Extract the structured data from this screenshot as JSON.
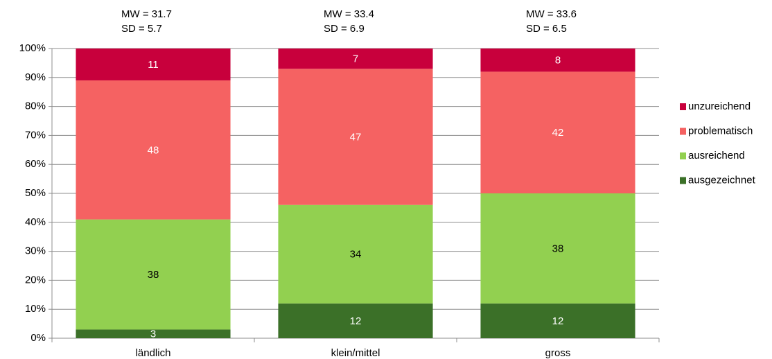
{
  "chart_data": {
    "type": "stacked_bar",
    "categories": [
      "ländlich",
      "klein/mittel",
      "gross"
    ],
    "annotations": [
      [
        "MW = 31.7",
        "SD = 5.7"
      ],
      [
        "MW = 33.4",
        "SD = 6.9"
      ],
      [
        "MW = 33.6",
        "SD = 6.5"
      ]
    ],
    "series": [
      {
        "name": "ausgezeichnet",
        "color": "#3b7028",
        "label_color": "#ffffff",
        "values": [
          3,
          12,
          12
        ]
      },
      {
        "name": "ausreichend",
        "color": "#92d050",
        "label_color": "#000000",
        "values": [
          38,
          34,
          38
        ]
      },
      {
        "name": "problematisch",
        "color": "#f56262",
        "label_color": "#ffffff",
        "values": [
          48,
          47,
          42
        ]
      },
      {
        "name": "unzureichend",
        "color": "#c8003c",
        "label_color": "#ffffff",
        "values": [
          11,
          7,
          8
        ]
      }
    ],
    "ylim": [
      0,
      100
    ],
    "yticks": [
      {
        "value": 0,
        "label": "0%"
      },
      {
        "value": 10,
        "label": "10%"
      },
      {
        "value": 20,
        "label": "20%"
      },
      {
        "value": 30,
        "label": "30%"
      },
      {
        "value": 40,
        "label": "40%"
      },
      {
        "value": 50,
        "label": "50%"
      },
      {
        "value": 60,
        "label": "60%"
      },
      {
        "value": 70,
        "label": "70%"
      },
      {
        "value": 80,
        "label": "80%"
      },
      {
        "value": 90,
        "label": "90%"
      },
      {
        "value": 100,
        "label": "100%"
      }
    ],
    "grid": true,
    "legend": "right"
  }
}
